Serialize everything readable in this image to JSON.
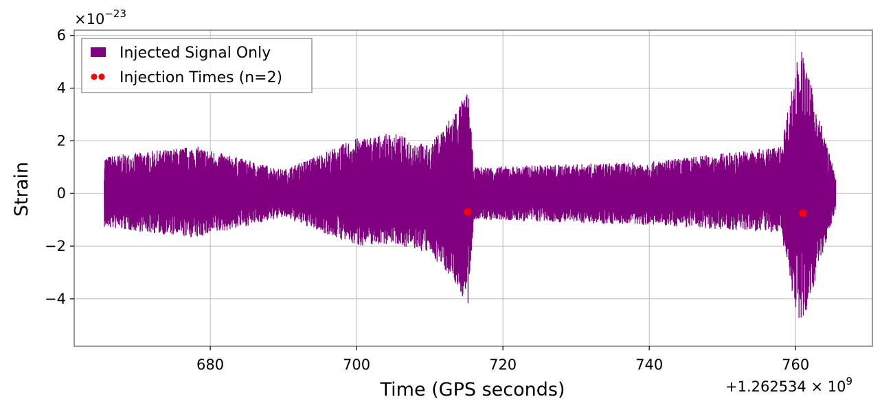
{
  "chart_data": {
    "type": "line",
    "title": "",
    "xlabel": "Time (GPS seconds)",
    "ylabel": "Strain",
    "x_offset_label": "+1.262534",
    "x_offset_exp": "9",
    "y_scale_label": "×10",
    "y_scale_exp": "−23",
    "xlim": [
      661.4,
      770.5
    ],
    "ylim": [
      -5.8,
      6.2
    ],
    "x_ticks": [
      680,
      700,
      720,
      740,
      760
    ],
    "x_tick_labels": [
      "680",
      "700",
      "720",
      "740",
      "760"
    ],
    "y_ticks": [
      -4,
      -2,
      0,
      2,
      4,
      6
    ],
    "y_tick_labels": [
      "−4",
      "−2",
      "0",
      "2",
      "4",
      "6"
    ],
    "grid": true,
    "legend_position": "upper-left",
    "series": [
      {
        "name": "Injected Signal Only",
        "style": "line",
        "color": "#800080",
        "x_range": [
          665.5,
          765.5
        ],
        "baseline_amplitude": 1.0,
        "envelope": [
          {
            "x": 665.5,
            "y_max": 1.4,
            "y_min": -1.3
          },
          {
            "x": 678,
            "y_max": 1.8,
            "y_min": -1.7
          },
          {
            "x": 690,
            "y_max": 0.9,
            "y_min": -0.9
          },
          {
            "x": 700,
            "y_max": 2.1,
            "y_min": -2.0
          },
          {
            "x": 705,
            "y_max": 2.3,
            "y_min": -1.9
          },
          {
            "x": 710,
            "y_max": 1.8,
            "y_min": -2.3
          },
          {
            "x": 713,
            "y_max": 3.0,
            "y_min": -3.2
          },
          {
            "x": 715.3,
            "y_max": 3.9,
            "y_min": -4.4
          },
          {
            "x": 716,
            "y_max": 1.0,
            "y_min": -1.0
          },
          {
            "x": 740,
            "y_max": 1.2,
            "y_min": -1.2
          },
          {
            "x": 758,
            "y_max": 1.8,
            "y_min": -1.5
          },
          {
            "x": 760.6,
            "y_max": 5.7,
            "y_min": -5.3
          },
          {
            "x": 765.5,
            "y_max": 0.6,
            "y_min": -0.6
          }
        ]
      },
      {
        "name": "Injection Times (n=2)",
        "style": "scatter",
        "color": "#ff0000",
        "points": [
          {
            "x": 715.2,
            "y": -0.7
          },
          {
            "x": 761.0,
            "y": -0.75
          }
        ]
      }
    ]
  }
}
